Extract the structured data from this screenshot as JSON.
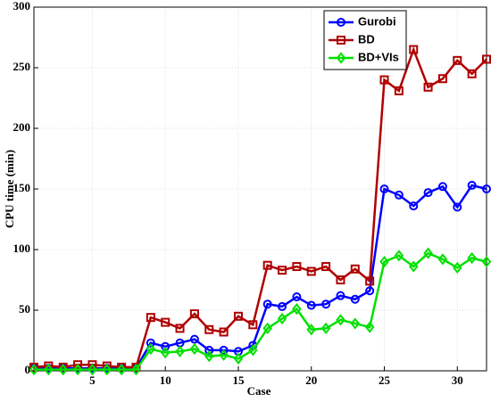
{
  "chart_data": {
    "type": "line",
    "x_label": "Case",
    "y_label": "CPU time (min)",
    "x": [
      1,
      2,
      3,
      4,
      5,
      6,
      7,
      8,
      9,
      10,
      11,
      12,
      13,
      14,
      15,
      16,
      17,
      18,
      19,
      20,
      21,
      22,
      23,
      24,
      25,
      26,
      27,
      28,
      29,
      30,
      31,
      32
    ],
    "series": [
      {
        "name": "Gurobi",
        "color": "#0000ff",
        "marker": "circle",
        "values": [
          2,
          2,
          2,
          2,
          2,
          2,
          2,
          2,
          23,
          20,
          23,
          26,
          17,
          17,
          16,
          21,
          55,
          53,
          61,
          54,
          55,
          62,
          59,
          66,
          150,
          145,
          136,
          147,
          152,
          135,
          153,
          150
        ]
      },
      {
        "name": "BD",
        "color": "#b00000",
        "marker": "square",
        "values": [
          3,
          4,
          3,
          5,
          5,
          4,
          3,
          3,
          44,
          40,
          35,
          47,
          34,
          32,
          45,
          38,
          87,
          83,
          86,
          82,
          86,
          75,
          84,
          74,
          240,
          231,
          265,
          234,
          241,
          256,
          245,
          257
        ]
      },
      {
        "name": "BD+VIs",
        "color": "#00e000",
        "marker": "diamond",
        "values": [
          1,
          1,
          1,
          1,
          1,
          1,
          1,
          1,
          18,
          15,
          16,
          18,
          12,
          13,
          10,
          17,
          35,
          43,
          51,
          34,
          35,
          42,
          39,
          36,
          90,
          95,
          86,
          97,
          92,
          85,
          93,
          90
        ]
      }
    ],
    "xlim": [
      1,
      32
    ],
    "xticks": [
      5,
      10,
      15,
      20,
      25,
      30
    ],
    "ylim": [
      0,
      300
    ],
    "yticks": [
      0,
      50,
      100,
      150,
      200,
      250,
      300
    ],
    "grid": true,
    "legend": "top-right"
  }
}
